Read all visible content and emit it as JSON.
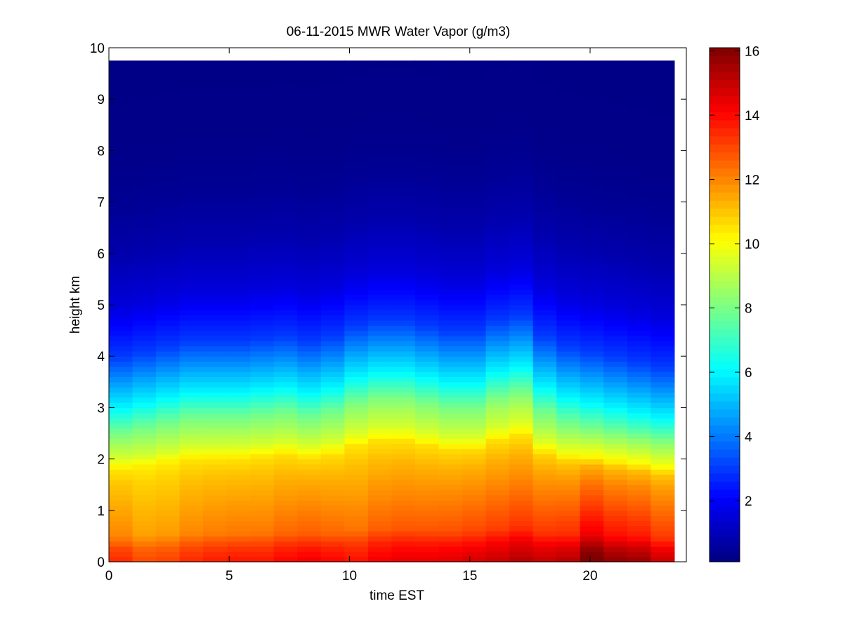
{
  "figure": {
    "background": "#ffffff"
  },
  "chart_data": {
    "type": "heatmap",
    "title": "06-11-2015 MWR Water Vapor (g/m3)",
    "xlabel": "time EST",
    "ylabel": "height km",
    "xlim": [
      0,
      24
    ],
    "ylim": [
      0,
      10
    ],
    "xticks": [
      0,
      5,
      10,
      15,
      20
    ],
    "yticks": [
      0,
      1,
      2,
      3,
      4,
      5,
      6,
      7,
      8,
      9,
      10
    ],
    "x_extent": [
      0,
      23.5
    ],
    "y_extent": [
      0,
      9.75
    ],
    "colormap": "jet",
    "colorbar": {
      "min": 0.1,
      "max": 16.1,
      "ticks": [
        2,
        4,
        6,
        8,
        10,
        12,
        14,
        16
      ],
      "levels": 64
    },
    "time_columns": [
      0,
      1,
      2,
      3,
      4,
      5,
      6,
      7,
      8,
      9,
      10,
      11,
      12,
      13,
      14,
      15,
      16,
      17,
      18,
      19,
      20,
      21,
      22,
      23
    ],
    "profile_heights": [
      0,
      0.25,
      0.5,
      1,
      1.5,
      1.8,
      2,
      2.5,
      3,
      3.5,
      4,
      5,
      6,
      7,
      8,
      9.75
    ],
    "profile_values": [
      13.5,
      13.0,
      12.0,
      11.5,
      11.0,
      10.5,
      9.5,
      8.0,
      6.0,
      4.5,
      3.0,
      1.5,
      0.8,
      0.4,
      0.25,
      0.2
    ],
    "column_surface_boost": [
      0,
      -0.5,
      -0.4,
      0,
      0.2,
      0.3,
      0.3,
      0.6,
      0.8,
      0.6,
      0.4,
      0.8,
      1.0,
      1.0,
      1.1,
      1.3,
      1.5,
      1.8,
      1.6,
      1.8,
      3.0,
      2.4,
      2.2,
      1.5
    ],
    "column_moist_depth": [
      0,
      0.1,
      0.2,
      0.3,
      0.3,
      0.3,
      0.35,
      0.4,
      0.3,
      0.4,
      0.6,
      0.7,
      0.7,
      0.6,
      0.5,
      0.5,
      0.7,
      0.8,
      0.4,
      0.2,
      0.1,
      0.0,
      -0.1,
      -0.2
    ]
  }
}
